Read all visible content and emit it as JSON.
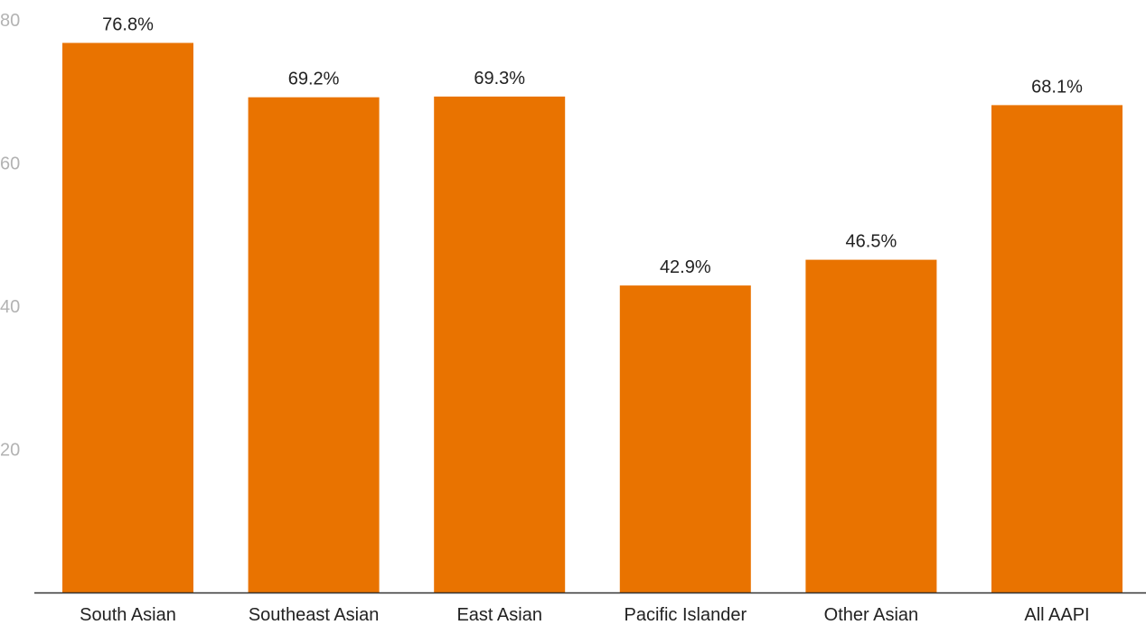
{
  "chart_data": {
    "type": "bar",
    "categories": [
      "South Asian",
      "Southeast Asian",
      "East Asian",
      "Pacific Islander",
      "Other Asian",
      "All AAPI"
    ],
    "values": [
      76.8,
      69.2,
      69.3,
      42.9,
      46.5,
      68.1
    ],
    "data_labels": [
      "76.8%",
      "69.2%",
      "69.3%",
      "42.9%",
      "46.5%",
      "68.1%"
    ],
    "y_ticks": [
      20,
      40,
      60,
      80
    ],
    "y_tick_labels": [
      "20",
      "40",
      "60",
      "80"
    ],
    "ylim": [
      0,
      80
    ],
    "grid": false,
    "legend": "none",
    "colors": {
      "bar": "#e97300",
      "axis": "#333333",
      "tick_text": "#b3b3b3",
      "label_text": "#222222"
    }
  }
}
